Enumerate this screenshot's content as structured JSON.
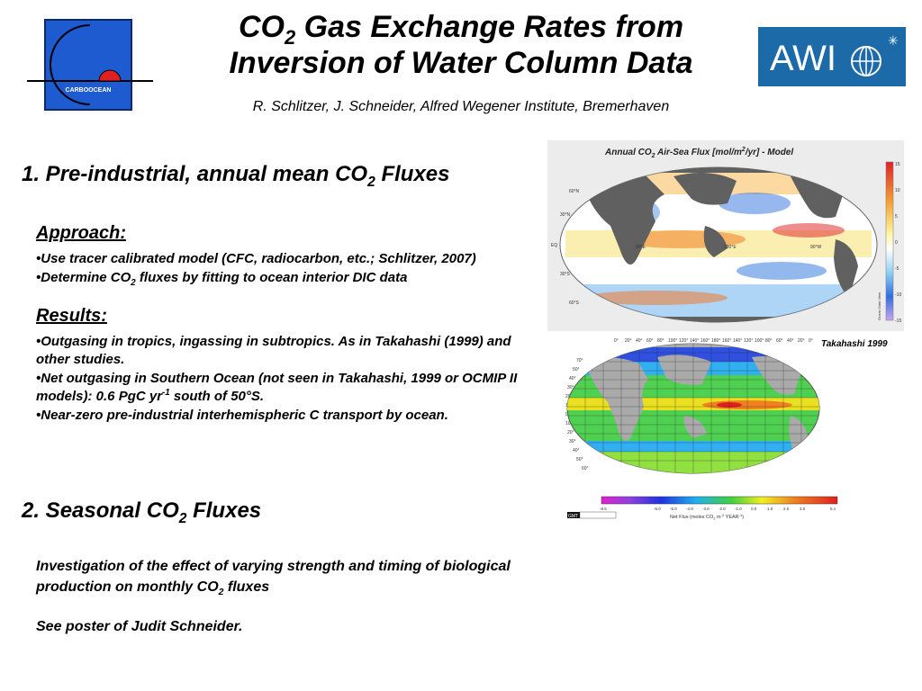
{
  "header": {
    "title_line1_prefix": "CO",
    "title_line1_sub": "2",
    "title_line1_suffix": " Gas Exchange Rates from",
    "title_line2": "Inversion of Water Column Data",
    "authors": "R. Schlitzer, J. Schneider, Alfred Wegener Institute, Bremerhaven",
    "left_logo_text": "CARBOOCEAN",
    "right_logo_text": "AWI"
  },
  "section1": {
    "heading_prefix": "1. Pre-industrial, annual mean CO",
    "heading_sub": "2",
    "heading_suffix": " Fluxes",
    "approach_heading": "Approach:",
    "approach_bullet1": "Use tracer calibrated model (CFC, radiocarbon, etc.; Schlitzer, 2007)",
    "approach_bullet2_prefix": "Determine CO",
    "approach_bullet2_sub": "2",
    "approach_bullet2_suffix": " fluxes by fitting to ocean interior DIC data",
    "results_heading": "Results:",
    "results_bullet1": "Outgasing in tropics, ingassing in subtropics. As in Takahashi (1999) and other studies.",
    "results_bullet2_prefix": "Net outgasing in Southern Ocean (not seen in Takahashi, 1999 or OCMIP II models):   0.6 PgC yr",
    "results_bullet2_sup": "-1",
    "results_bullet2_suffix": " south of 50°S.",
    "results_bullet3": "Near-zero pre-industrial interhemispheric C transport by ocean."
  },
  "section2": {
    "heading_prefix": "2. Seasonal CO",
    "heading_sub": "2",
    "heading_suffix": " Fluxes",
    "text_prefix": "Investigation of the effect of varying strength and timing of biological production on monthly CO",
    "text_sub": "2",
    "text_suffix": " fluxes",
    "poster": "See poster of Judit Schneider."
  },
  "map_model": {
    "title_prefix": "Annual CO",
    "title_sub": "2",
    "title_middle": " Air-Sea Flux [mol/m",
    "title_sup": "2",
    "title_suffix": "/yr] - Model",
    "colorbar_ticks": [
      "15",
      "10",
      "5",
      "0",
      "-5",
      "-10",
      "-15"
    ],
    "colorbar_label": "Ocean Data View",
    "lat_labels": [
      "60°N",
      "30°N",
      "EQ",
      "30°S",
      "60°S"
    ],
    "lon_labels": [
      "90°E",
      "180°E",
      "90°W"
    ]
  },
  "map_takahashi": {
    "label": "Takahashi 1999",
    "top_ticks": [
      "0°",
      "20°",
      "40°",
      "60°",
      "80°",
      "100°",
      "120°",
      "140°",
      "160°",
      "180°",
      "160°",
      "140°",
      "120°",
      "100°",
      "80°",
      "60°",
      "40°",
      "20°",
      "0°"
    ],
    "lat_ticks": [
      "70°",
      "50°",
      "40°",
      "30°",
      "20°",
      "10°",
      "0°",
      "10°",
      "20°",
      "30°",
      "40°",
      "50°",
      "60°"
    ],
    "colorbar_ticks": [
      "-9.5",
      "-6.0",
      "-5.0",
      "-4.0",
      "-3.0",
      "-2.0",
      "-1.0",
      "0.0",
      "1.0",
      "2.0",
      "3.0",
      "5.1"
    ],
    "colorbar_label_prefix": "Net Flux (moles CO",
    "colorbar_label_sub": "2",
    "colorbar_label_mid": " m",
    "colorbar_label_sup": "-2",
    "colorbar_label_mid2": " YEAR",
    "colorbar_label_sup2": "-1",
    "colorbar_label_suffix": ")",
    "gmt_tag": "GMT"
  }
}
